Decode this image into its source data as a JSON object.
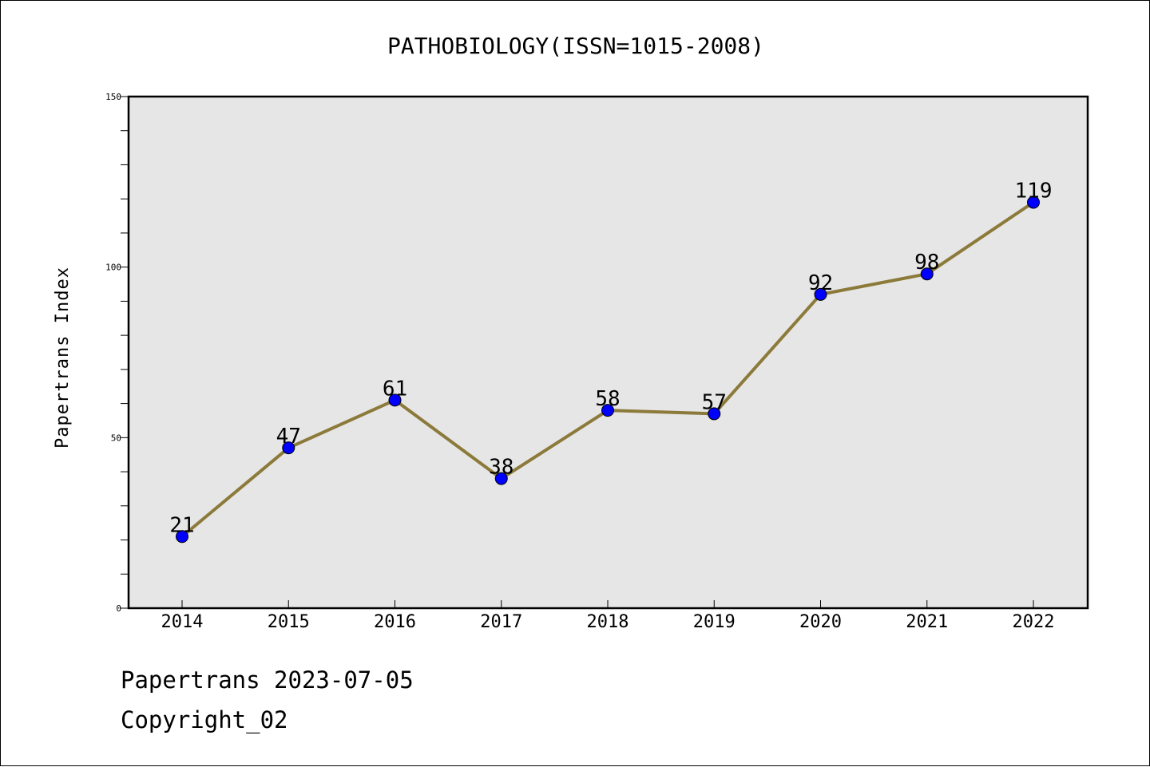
{
  "chart_data": {
    "type": "line",
    "title": "PATHOBIOLOGY(ISSN=1015-2008)",
    "xlabel": "",
    "ylabel": "Papertrans Index",
    "categories": [
      "2014",
      "2015",
      "2016",
      "2017",
      "2018",
      "2019",
      "2020",
      "2021",
      "2022"
    ],
    "series": [
      {
        "values": [
          21,
          47,
          61,
          38,
          58,
          57,
          92,
          98,
          119
        ]
      }
    ],
    "ylim": [
      0,
      150
    ],
    "yticks": [
      "0",
      "50",
      "100",
      "150"
    ],
    "grid": false,
    "legend": "none",
    "colors": {
      "line": "#8c7a3a",
      "marker": "#0000ff",
      "plot_background": "#e6e6e6"
    }
  },
  "footer": {
    "line1": "Papertrans 2023-07-05",
    "line2": "Copyright_02"
  }
}
